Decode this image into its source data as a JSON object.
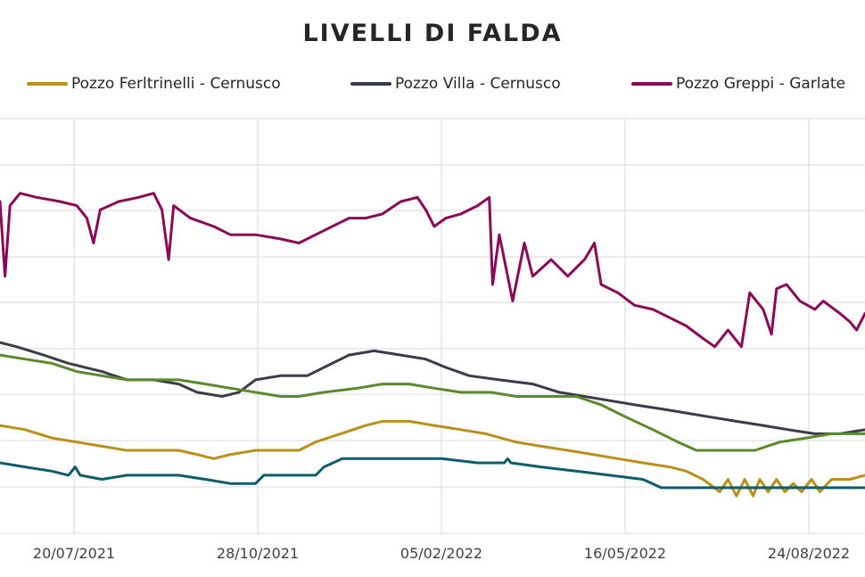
{
  "chart_data": {
    "type": "line",
    "title": "LIVELLI  DI FALDA",
    "xlabel": "",
    "ylabel": "",
    "x_tick_labels": [
      "20/07/2021",
      "28/10/2021",
      "05/02/2022",
      "16/05/2022",
      "24/08/2022"
    ],
    "x_range": [
      "2021-05-10",
      "2022-10-10"
    ],
    "grid": true,
    "legend_position": "top",
    "legend": [
      {
        "name": "Pozzo Ferltrinelli - Cernusco",
        "color": "#b8901a"
      },
      {
        "name": "Pozzo Villa - Cernusco",
        "color": "#3c3c48"
      },
      {
        "name": "Pozzo Greppi - Garlate",
        "color": "#8b0a55"
      }
    ],
    "series": [
      {
        "color": "#8b0a55",
        "points": [
          [
            "2021-05-10",
            0.8
          ],
          [
            "2021-05-13",
            0.62
          ],
          [
            "2021-05-16",
            0.79
          ],
          [
            "2021-05-22",
            0.82
          ],
          [
            "2021-06-01",
            0.81
          ],
          [
            "2021-06-15",
            0.8
          ],
          [
            "2021-06-25",
            0.79
          ],
          [
            "2021-07-01",
            0.76
          ],
          [
            "2021-07-05",
            0.7
          ],
          [
            "2021-07-09",
            0.78
          ],
          [
            "2021-07-20",
            0.8
          ],
          [
            "2021-08-01",
            0.81
          ],
          [
            "2021-08-10",
            0.82
          ],
          [
            "2021-08-15",
            0.78
          ],
          [
            "2021-08-19",
            0.66
          ],
          [
            "2021-08-22",
            0.79
          ],
          [
            "2021-09-01",
            0.76
          ],
          [
            "2021-09-15",
            0.74
          ],
          [
            "2021-09-25",
            0.72
          ],
          [
            "2021-10-10",
            0.72
          ],
          [
            "2021-10-25",
            0.71
          ],
          [
            "2021-11-05",
            0.7
          ],
          [
            "2021-11-15",
            0.72
          ],
          [
            "2021-11-25",
            0.74
          ],
          [
            "2021-12-05",
            0.76
          ],
          [
            "2021-12-15",
            0.76
          ],
          [
            "2021-12-25",
            0.77
          ],
          [
            "2022-01-05",
            0.8
          ],
          [
            "2022-01-15",
            0.81
          ],
          [
            "2022-01-20",
            0.78
          ],
          [
            "2022-01-25",
            0.74
          ],
          [
            "2022-02-01",
            0.76
          ],
          [
            "2022-02-10",
            0.77
          ],
          [
            "2022-02-20",
            0.79
          ],
          [
            "2022-02-27",
            0.81
          ],
          [
            "2022-03-01",
            0.6
          ],
          [
            "2022-03-05",
            0.72
          ],
          [
            "2022-03-10",
            0.62
          ],
          [
            "2022-03-13",
            0.56
          ],
          [
            "2022-03-20",
            0.7
          ],
          [
            "2022-03-25",
            0.62
          ],
          [
            "2022-04-05",
            0.66
          ],
          [
            "2022-04-15",
            0.62
          ],
          [
            "2022-04-25",
            0.66
          ],
          [
            "2022-05-01",
            0.7
          ],
          [
            "2022-05-05",
            0.6
          ],
          [
            "2022-05-15",
            0.58
          ],
          [
            "2022-05-25",
            0.55
          ],
          [
            "2022-06-05",
            0.54
          ],
          [
            "2022-06-15",
            0.52
          ],
          [
            "2022-06-25",
            0.5
          ],
          [
            "2022-07-05",
            0.47
          ],
          [
            "2022-07-12",
            0.45
          ],
          [
            "2022-07-20",
            0.49
          ],
          [
            "2022-07-28",
            0.45
          ],
          [
            "2022-08-02",
            0.58
          ],
          [
            "2022-08-10",
            0.54
          ],
          [
            "2022-08-15",
            0.48
          ],
          [
            "2022-08-18",
            0.59
          ],
          [
            "2022-08-24",
            0.6
          ],
          [
            "2022-09-01",
            0.56
          ],
          [
            "2022-09-10",
            0.54
          ],
          [
            "2022-09-15",
            0.56
          ],
          [
            "2022-09-25",
            0.53
          ],
          [
            "2022-10-01",
            0.51
          ],
          [
            "2022-10-05",
            0.49
          ],
          [
            "2022-10-10",
            0.53
          ]
        ]
      },
      {
        "color": "#3c3c48",
        "points": [
          [
            "2021-05-10",
            0.46
          ],
          [
            "2021-05-20",
            0.45
          ],
          [
            "2021-06-05",
            0.43
          ],
          [
            "2021-06-20",
            0.41
          ],
          [
            "2021-07-10",
            0.39
          ],
          [
            "2021-07-25",
            0.37
          ],
          [
            "2021-08-10",
            0.37
          ],
          [
            "2021-08-25",
            0.36
          ],
          [
            "2021-09-05",
            0.34
          ],
          [
            "2021-09-20",
            0.33
          ],
          [
            "2021-09-30",
            0.34
          ],
          [
            "2021-10-10",
            0.37
          ],
          [
            "2021-10-25",
            0.38
          ],
          [
            "2021-11-10",
            0.38
          ],
          [
            "2021-11-25",
            0.41
          ],
          [
            "2021-12-05",
            0.43
          ],
          [
            "2021-12-20",
            0.44
          ],
          [
            "2022-01-05",
            0.43
          ],
          [
            "2022-01-20",
            0.42
          ],
          [
            "2022-02-01",
            0.4
          ],
          [
            "2022-02-15",
            0.38
          ],
          [
            "2022-03-05",
            0.37
          ],
          [
            "2022-03-25",
            0.36
          ],
          [
            "2022-04-10",
            0.34
          ],
          [
            "2022-04-25",
            0.33
          ],
          [
            "2022-05-10",
            0.32
          ],
          [
            "2022-05-25",
            0.31
          ],
          [
            "2022-06-10",
            0.3
          ],
          [
            "2022-06-25",
            0.29
          ],
          [
            "2022-07-10",
            0.28
          ],
          [
            "2022-07-25",
            0.27
          ],
          [
            "2022-08-10",
            0.26
          ],
          [
            "2022-08-25",
            0.25
          ],
          [
            "2022-09-10",
            0.24
          ],
          [
            "2022-09-25",
            0.24
          ],
          [
            "2022-10-10",
            0.25
          ]
        ]
      },
      {
        "color": "#5a8a2c",
        "points": [
          [
            "2021-05-10",
            0.43
          ],
          [
            "2021-05-25",
            0.42
          ],
          [
            "2021-06-10",
            0.41
          ],
          [
            "2021-06-25",
            0.39
          ],
          [
            "2021-07-10",
            0.38
          ],
          [
            "2021-07-25",
            0.37
          ],
          [
            "2021-08-10",
            0.37
          ],
          [
            "2021-08-25",
            0.37
          ],
          [
            "2021-09-10",
            0.36
          ],
          [
            "2021-09-25",
            0.35
          ],
          [
            "2021-10-10",
            0.34
          ],
          [
            "2021-10-25",
            0.33
          ],
          [
            "2021-11-05",
            0.33
          ],
          [
            "2021-11-20",
            0.34
          ],
          [
            "2021-12-10",
            0.35
          ],
          [
            "2021-12-25",
            0.36
          ],
          [
            "2022-01-10",
            0.36
          ],
          [
            "2022-01-25",
            0.35
          ],
          [
            "2022-02-10",
            0.34
          ],
          [
            "2022-02-28",
            0.34
          ],
          [
            "2022-03-15",
            0.33
          ],
          [
            "2022-04-10",
            0.33
          ],
          [
            "2022-04-20",
            0.33
          ],
          [
            "2022-05-05",
            0.31
          ],
          [
            "2022-05-20",
            0.28
          ],
          [
            "2022-06-05",
            0.25
          ],
          [
            "2022-06-20",
            0.22
          ],
          [
            "2022-07-01",
            0.2
          ],
          [
            "2022-07-15",
            0.2
          ],
          [
            "2022-08-05",
            0.2
          ],
          [
            "2022-08-20",
            0.22
          ],
          [
            "2022-09-05",
            0.23
          ],
          [
            "2022-09-20",
            0.24
          ],
          [
            "2022-10-10",
            0.24
          ]
        ]
      },
      {
        "color": "#b8901a",
        "points": [
          [
            "2021-05-10",
            0.26
          ],
          [
            "2021-05-25",
            0.25
          ],
          [
            "2021-06-10",
            0.23
          ],
          [
            "2021-06-25",
            0.22
          ],
          [
            "2021-07-10",
            0.21
          ],
          [
            "2021-07-25",
            0.2
          ],
          [
            "2021-08-10",
            0.2
          ],
          [
            "2021-08-25",
            0.2
          ],
          [
            "2021-09-05",
            0.19
          ],
          [
            "2021-09-15",
            0.18
          ],
          [
            "2021-09-25",
            0.19
          ],
          [
            "2021-10-10",
            0.2
          ],
          [
            "2021-10-25",
            0.2
          ],
          [
            "2021-11-05",
            0.2
          ],
          [
            "2021-11-15",
            0.22
          ],
          [
            "2021-11-30",
            0.24
          ],
          [
            "2021-12-15",
            0.26
          ],
          [
            "2021-12-25",
            0.27
          ],
          [
            "2022-01-10",
            0.27
          ],
          [
            "2022-01-25",
            0.26
          ],
          [
            "2022-02-10",
            0.25
          ],
          [
            "2022-02-25",
            0.24
          ],
          [
            "2022-03-15",
            0.22
          ],
          [
            "2022-03-30",
            0.21
          ],
          [
            "2022-04-15",
            0.2
          ],
          [
            "2022-04-30",
            0.19
          ],
          [
            "2022-05-15",
            0.18
          ],
          [
            "2022-05-30",
            0.17
          ],
          [
            "2022-06-15",
            0.16
          ],
          [
            "2022-06-25",
            0.15
          ],
          [
            "2022-07-05",
            0.13
          ],
          [
            "2022-07-15",
            0.1
          ],
          [
            "2022-07-20",
            0.13
          ],
          [
            "2022-07-25",
            0.09
          ],
          [
            "2022-07-30",
            0.13
          ],
          [
            "2022-08-04",
            0.09
          ],
          [
            "2022-08-08",
            0.13
          ],
          [
            "2022-08-13",
            0.1
          ],
          [
            "2022-08-18",
            0.13
          ],
          [
            "2022-08-23",
            0.1
          ],
          [
            "2022-08-28",
            0.12
          ],
          [
            "2022-09-02",
            0.1
          ],
          [
            "2022-09-08",
            0.13
          ],
          [
            "2022-09-13",
            0.1
          ],
          [
            "2022-09-20",
            0.13
          ],
          [
            "2022-10-01",
            0.13
          ],
          [
            "2022-10-10",
            0.14
          ]
        ]
      },
      {
        "color": "#0d5d6b",
        "points": [
          [
            "2021-05-10",
            0.17
          ],
          [
            "2021-05-25",
            0.16
          ],
          [
            "2021-06-10",
            0.15
          ],
          [
            "2021-06-20",
            0.14
          ],
          [
            "2021-06-24",
            0.16
          ],
          [
            "2021-06-27",
            0.14
          ],
          [
            "2021-07-10",
            0.13
          ],
          [
            "2021-07-25",
            0.14
          ],
          [
            "2021-08-10",
            0.14
          ],
          [
            "2021-08-25",
            0.14
          ],
          [
            "2021-09-10",
            0.13
          ],
          [
            "2021-09-25",
            0.12
          ],
          [
            "2021-10-10",
            0.12
          ],
          [
            "2021-10-15",
            0.14
          ],
          [
            "2021-10-30",
            0.14
          ],
          [
            "2021-11-15",
            0.14
          ],
          [
            "2021-11-20",
            0.16
          ],
          [
            "2021-12-01",
            0.18
          ],
          [
            "2021-12-20",
            0.18
          ],
          [
            "2022-01-10",
            0.18
          ],
          [
            "2022-01-30",
            0.18
          ],
          [
            "2022-02-20",
            0.17
          ],
          [
            "2022-03-08",
            0.17
          ],
          [
            "2022-03-10",
            0.18
          ],
          [
            "2022-03-12",
            0.17
          ],
          [
            "2022-03-30",
            0.16
          ],
          [
            "2022-04-20",
            0.15
          ],
          [
            "2022-05-10",
            0.14
          ],
          [
            "2022-05-30",
            0.13
          ],
          [
            "2022-06-10",
            0.11
          ],
          [
            "2022-06-25",
            0.11
          ],
          [
            "2022-07-10",
            0.11
          ],
          [
            "2022-08-10",
            0.11
          ],
          [
            "2022-09-10",
            0.11
          ],
          [
            "2022-10-10",
            0.11
          ]
        ]
      }
    ]
  }
}
